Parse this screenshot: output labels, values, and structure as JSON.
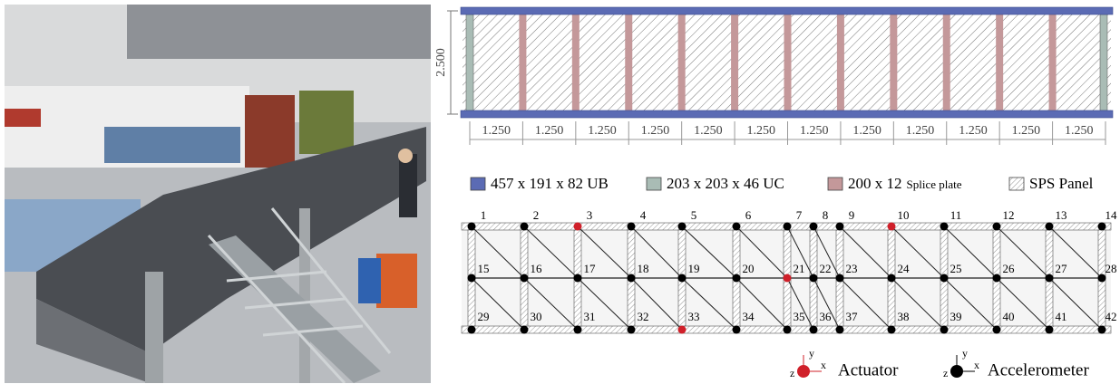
{
  "dimensions": {
    "height": "2.500",
    "widths": [
      "1.250",
      "1.250",
      "1.250",
      "1.250",
      "1.250",
      "1.250",
      "1.250",
      "1.250",
      "1.250",
      "1.250",
      "1.250",
      "1.250"
    ]
  },
  "legend": [
    {
      "label": "457 x 191 x 82 UB",
      "color": "#5b6bb4"
    },
    {
      "label": "203 x 203 x 46 UC",
      "color": "#a9bcb5"
    },
    {
      "label": "200 x 12",
      "sublabel": "Splice plate",
      "color": "#c4989a"
    },
    {
      "label": "SPS Panel"
    }
  ],
  "nodes": [
    {
      "label": "1",
      "actuator": false
    },
    {
      "label": "2",
      "actuator": false
    },
    {
      "label": "3",
      "actuator": true
    },
    {
      "label": "4",
      "actuator": false
    },
    {
      "label": "5",
      "actuator": false
    },
    {
      "label": "6",
      "actuator": false
    },
    {
      "label": "7",
      "actuator": false
    },
    {
      "label": "8",
      "actuator": false
    },
    {
      "label": "9",
      "actuator": false
    },
    {
      "label": "10",
      "actuator": true
    },
    {
      "label": "11",
      "actuator": false
    },
    {
      "label": "12",
      "actuator": false
    },
    {
      "label": "13",
      "actuator": false
    },
    {
      "label": "14",
      "actuator": false
    },
    {
      "label": "15",
      "actuator": false
    },
    {
      "label": "16",
      "actuator": false
    },
    {
      "label": "17",
      "actuator": false
    },
    {
      "label": "18",
      "actuator": false
    },
    {
      "label": "19",
      "actuator": false
    },
    {
      "label": "20",
      "actuator": false
    },
    {
      "label": "21",
      "actuator": true
    },
    {
      "label": "22",
      "actuator": false
    },
    {
      "label": "23",
      "actuator": false
    },
    {
      "label": "24",
      "actuator": false
    },
    {
      "label": "25",
      "actuator": false
    },
    {
      "label": "26",
      "actuator": false
    },
    {
      "label": "27",
      "actuator": false
    },
    {
      "label": "28",
      "actuator": false
    },
    {
      "label": "29",
      "actuator": false
    },
    {
      "label": "30",
      "actuator": false
    },
    {
      "label": "31",
      "actuator": false
    },
    {
      "label": "32",
      "actuator": false
    },
    {
      "label": "33",
      "actuator": true
    },
    {
      "label": "34",
      "actuator": false
    },
    {
      "label": "35",
      "actuator": false
    },
    {
      "label": "36",
      "actuator": false
    },
    {
      "label": "37",
      "actuator": false
    },
    {
      "label": "38",
      "actuator": false
    },
    {
      "label": "39",
      "actuator": false
    },
    {
      "label": "40",
      "actuator": false
    },
    {
      "label": "41",
      "actuator": false
    },
    {
      "label": "42",
      "actuator": false
    }
  ],
  "sensor_legend": {
    "actuator": {
      "label": "Actuator",
      "color": "#d0202a",
      "axes": {
        "y": "y",
        "x": "x",
        "z": "z"
      }
    },
    "accelerometer": {
      "label": "Accelerometer",
      "color": "#000000",
      "axes": {
        "y": "y",
        "x": "x",
        "z": "z"
      }
    }
  }
}
